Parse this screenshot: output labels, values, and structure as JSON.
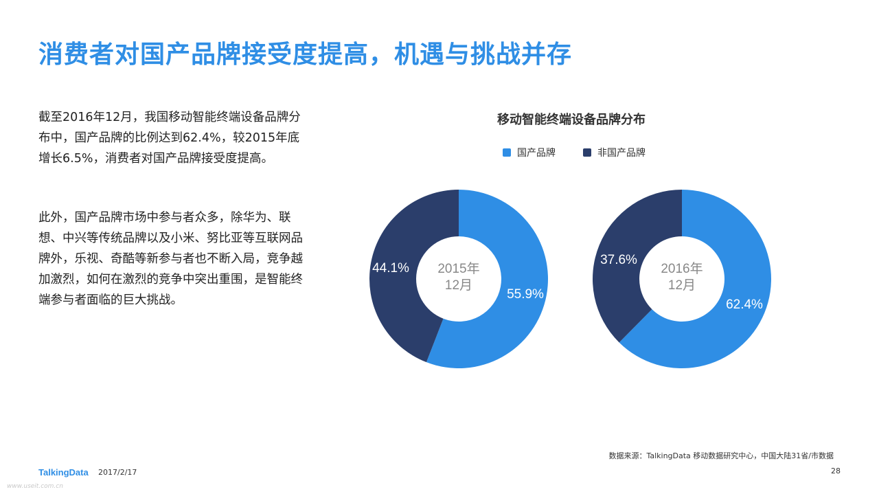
{
  "slide": {
    "title": "消费者对国产品牌接受度提高，机遇与挑战并存",
    "para1": "截至2016年12月，我国移动智能终端设备品牌分布中，国产品牌的比例达到62.4%，较2015年底增长6.5%，消费者对国产品牌接受度提高。",
    "para2": "此外，国产品牌市场中参与者众多，除华为、联想、中兴等传统品牌以及小米、努比亚等互联网品牌外，乐视、奇酷等新参与者也不断入局，竞争越加激烈，如何在激烈的竞争中突出重围，是智能终端参与者面临的巨大挑战。",
    "source": "数据来源：TalkingData 移动数据研究中心，中国大陆31省/市数据",
    "logo": "TalkingData",
    "date": "2017/2/17",
    "page_number": "28",
    "watermark": "www.useit.com.cn"
  },
  "colors": {
    "title": "#2f8ee5",
    "domestic": "#2f8ee5",
    "non_domestic": "#2b3e6b"
  },
  "chart_data": [
    {
      "type": "pie",
      "donut": true,
      "title": "移动智能终端设备品牌分布",
      "center_label": [
        "2015年",
        "12月"
      ],
      "series": [
        {
          "name": "国产品牌",
          "value": 55.9,
          "label": "55.9%"
        },
        {
          "name": "非国产品牌",
          "value": 44.1,
          "label": "44.1%"
        }
      ],
      "legend": "top"
    },
    {
      "type": "pie",
      "donut": true,
      "title": "移动智能终端设备品牌分布",
      "center_label": [
        "2016年",
        "12月"
      ],
      "series": [
        {
          "name": "国产品牌",
          "value": 62.4,
          "label": "62.4%"
        },
        {
          "name": "非国产品牌",
          "value": 37.6,
          "label": "37.6%"
        }
      ],
      "legend": "top"
    }
  ]
}
